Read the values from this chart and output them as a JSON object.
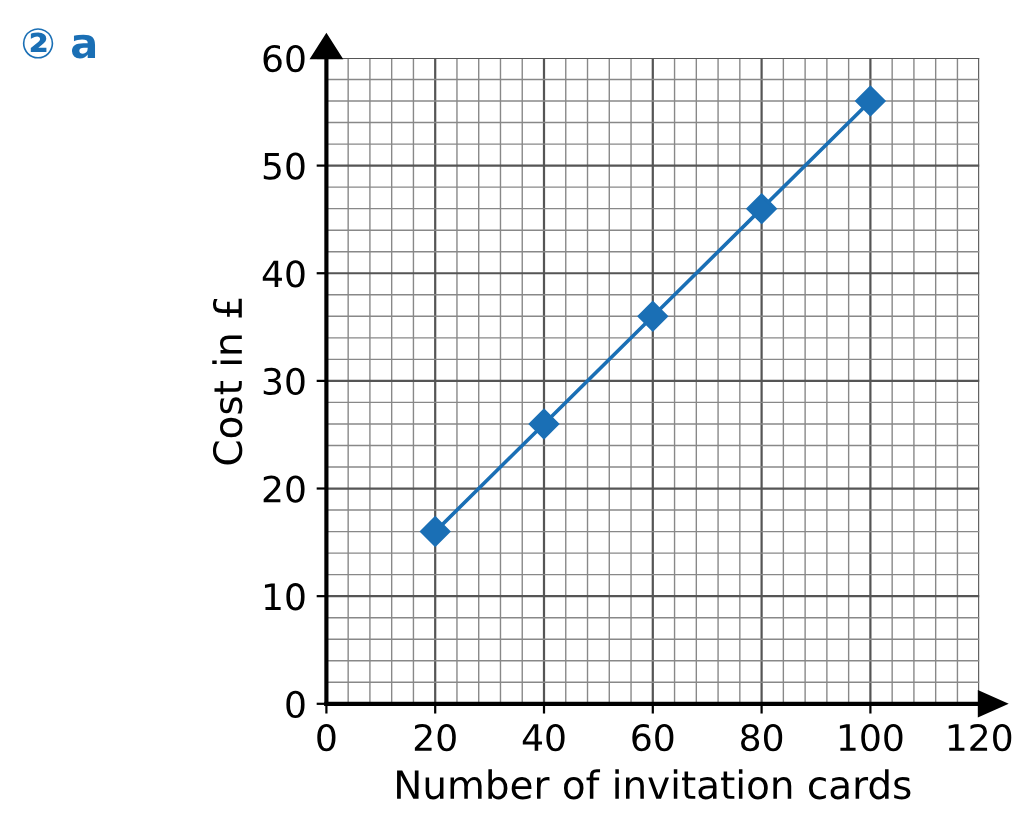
{
  "chart_data": {
    "type": "line",
    "title": "② a",
    "xlabel": "Number of invitation cards",
    "ylabel": "Cost in £",
    "x": [
      20,
      40,
      60,
      80,
      100
    ],
    "series": [
      {
        "color": "#1a6fb5",
        "values": [
          16,
          26,
          36,
          46,
          56
        ]
      }
    ],
    "xlim": [
      0,
      120
    ],
    "ylim": [
      0,
      60
    ],
    "xticks": [
      0,
      20,
      40,
      60,
      80,
      100,
      120
    ],
    "yticks": [
      0,
      10,
      20,
      30,
      40,
      50,
      60
    ],
    "grid": true,
    "marker": "diamond",
    "line_style": "solid"
  }
}
